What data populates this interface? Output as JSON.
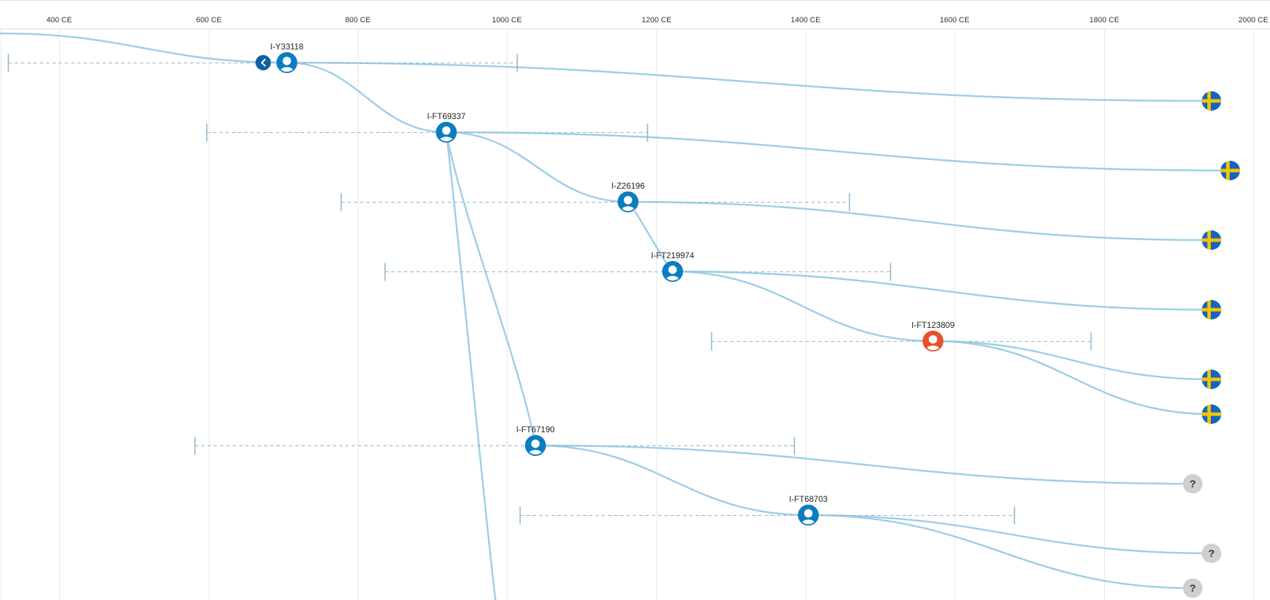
{
  "axis": {
    "ticks": [
      "400 CE",
      "600 CE",
      "800 CE",
      "1000 CE",
      "1200 CE",
      "1400 CE",
      "1600 CE",
      "1800 CE",
      "2000 CE"
    ]
  },
  "colors": {
    "branch": "#9fcfe6",
    "node": "#0b7dc1",
    "highlight": "#e8502c",
    "back_button": "#0b5fa5",
    "unknown": "#cfcfcf",
    "flag_blue": "#1565c0",
    "flag_yellow": "#f5c400"
  },
  "back_button": {
    "icon": "chevron-left-icon"
  },
  "nodes": [
    {
      "id": "I-Y33118",
      "label": "I-Y33118",
      "highlight": false
    },
    {
      "id": "I-FT69337",
      "label": "I-FT69337",
      "highlight": false
    },
    {
      "id": "I-Z26196",
      "label": "I-Z26196",
      "highlight": false
    },
    {
      "id": "I-FT219974",
      "label": "I-FT219974",
      "highlight": false
    },
    {
      "id": "I-FT123809",
      "label": "I-FT123809",
      "highlight": true
    },
    {
      "id": "I-FT67190",
      "label": "I-FT67190",
      "highlight": false
    },
    {
      "id": "I-FT68703",
      "label": "I-FT68703",
      "highlight": false
    }
  ],
  "leaves": [
    {
      "kind": "flag",
      "icon": "sweden-flag-icon"
    },
    {
      "kind": "flag",
      "icon": "sweden-flag-icon"
    },
    {
      "kind": "flag",
      "icon": "sweden-flag-icon"
    },
    {
      "kind": "flag",
      "icon": "sweden-flag-icon"
    },
    {
      "kind": "flag",
      "icon": "sweden-flag-icon"
    },
    {
      "kind": "flag",
      "icon": "sweden-flag-icon"
    },
    {
      "kind": "unknown",
      "icon": "question-mark-icon",
      "text": "?"
    },
    {
      "kind": "unknown",
      "icon": "question-mark-icon",
      "text": "?"
    },
    {
      "kind": "unknown",
      "icon": "question-mark-icon",
      "text": "?"
    }
  ]
}
